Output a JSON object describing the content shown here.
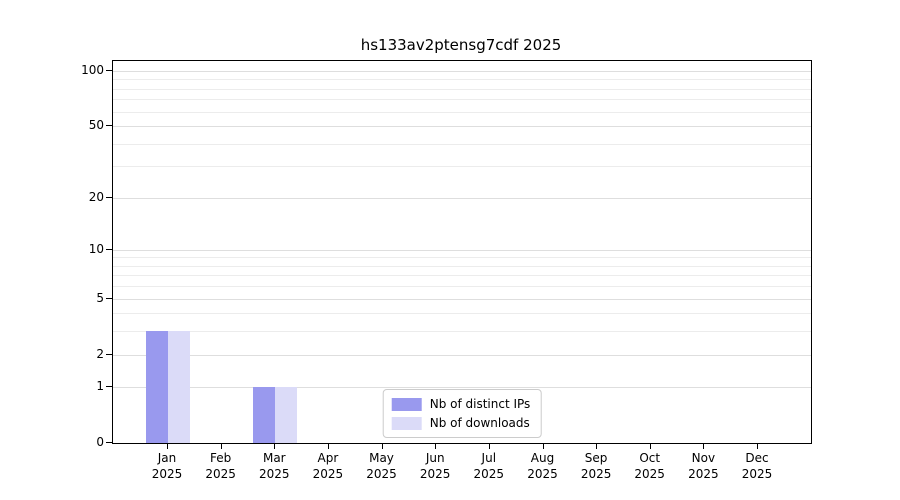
{
  "chart_data": {
    "type": "bar",
    "title": "hs133av2ptensg7cdf 2025",
    "year_label": "2025",
    "months": [
      "Jan",
      "Feb",
      "Mar",
      "Apr",
      "May",
      "Jun",
      "Jul",
      "Aug",
      "Sep",
      "Oct",
      "Nov",
      "Dec"
    ],
    "categories": [
      "Jan 2025",
      "Feb 2025",
      "Mar 2025",
      "Apr 2025",
      "May 2025",
      "Jun 2025",
      "Jul 2025",
      "Aug 2025",
      "Sep 2025",
      "Oct 2025",
      "Nov 2025",
      "Dec 2025"
    ],
    "series": [
      {
        "name": "Nb of distinct IPs",
        "color": "#9999ee",
        "values": [
          3,
          0,
          1,
          0,
          0,
          0,
          0,
          0,
          0,
          0,
          0,
          0
        ]
      },
      {
        "name": "Nb of downloads",
        "color": "#dbdbf8",
        "values": [
          3,
          0,
          1,
          0,
          0,
          0,
          0,
          0,
          0,
          0,
          0,
          0
        ]
      }
    ],
    "y_axis": {
      "ticks": [
        0,
        1,
        2,
        5,
        10,
        20,
        50,
        100
      ],
      "minor_ticks": [
        3,
        4,
        6,
        7,
        8,
        9,
        30,
        40,
        60,
        70,
        80,
        90
      ],
      "scale": "log1p",
      "range": [
        0,
        113
      ]
    },
    "xlabel": "",
    "ylabel": "",
    "grid": "horizontal",
    "legend_position": "lower center"
  }
}
